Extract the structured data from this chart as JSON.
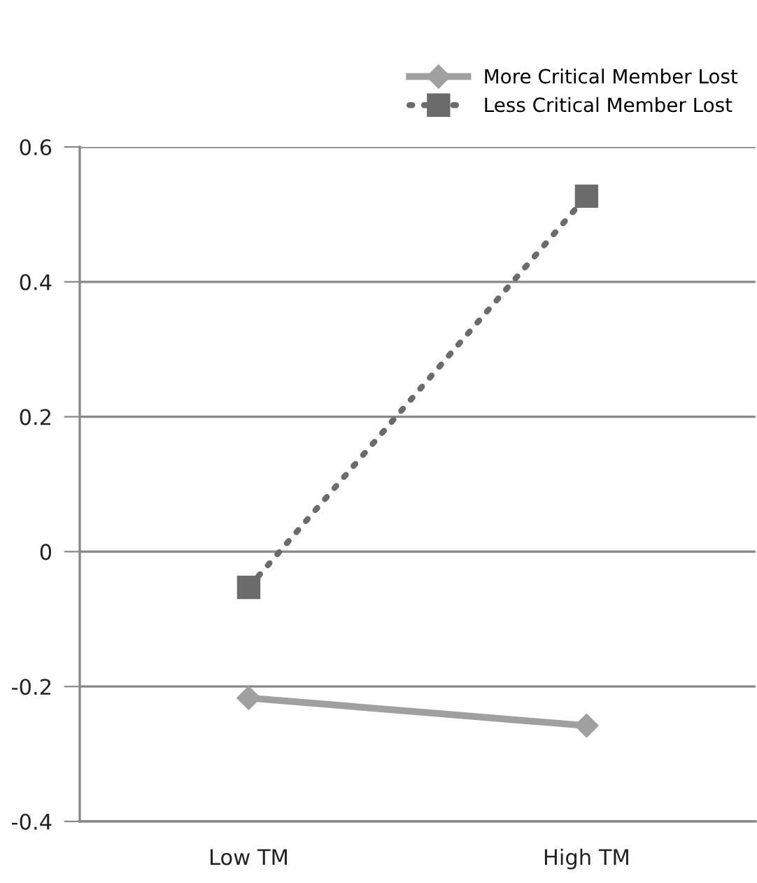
{
  "chart_data": {
    "type": "line",
    "categories": [
      "Low TM",
      "High TM"
    ],
    "series": [
      {
        "name": "More Critical Member Lost",
        "color": "#a0a0a0",
        "values": [
          -0.217,
          -0.258
        ],
        "marker": "diamond",
        "line_style": "solid"
      },
      {
        "name": "Less Critical Member Lost",
        "color": "#6b6b6b",
        "values": [
          -0.053,
          0.527
        ],
        "marker": "square",
        "line_style": "dotted"
      }
    ],
    "ylim": [
      -0.4,
      0.6
    ],
    "yticks": [
      0.6,
      0.4,
      0.2,
      {
        "value": 0,
        "label": "0"
      },
      -0.2,
      -0.4
    ],
    "grid": "y",
    "legend": "top right"
  }
}
